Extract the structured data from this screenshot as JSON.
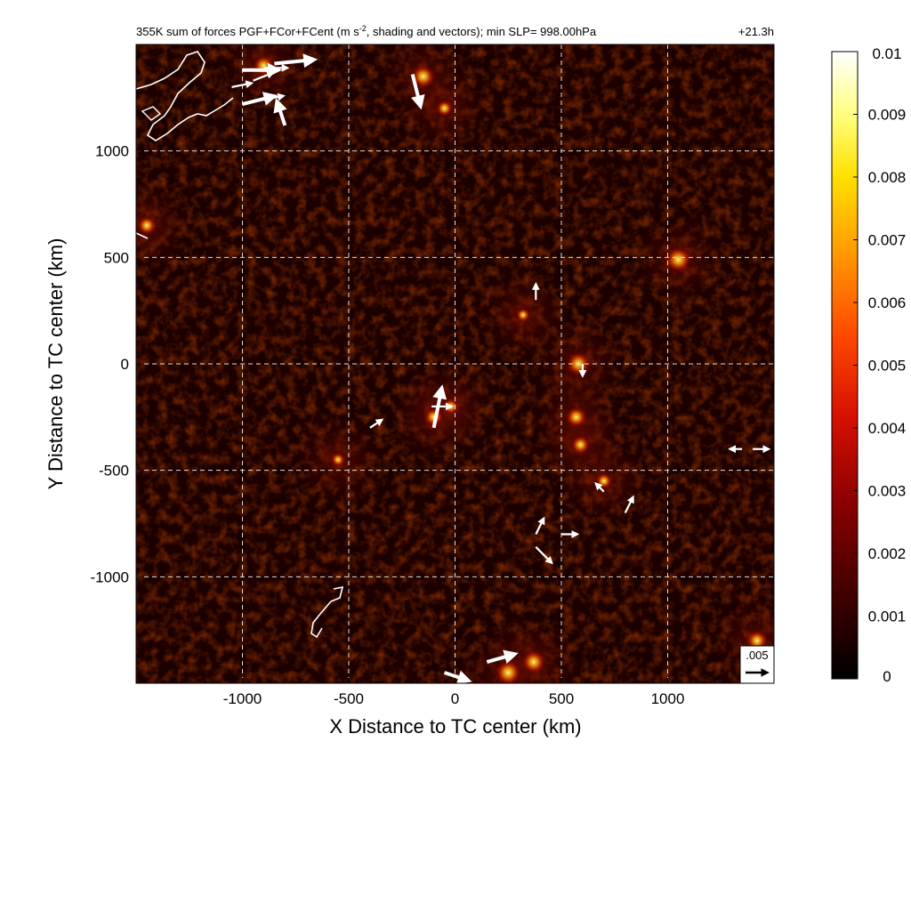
{
  "chart_data": {
    "type": "heatmap",
    "title": "355K sum of forces PGF+FCor+FCent (m s",
    "title_superscript": "-2",
    "title_rest": ", shading and vectors); min SLP= 998.00hPa",
    "time_label": "+21.3h",
    "xlabel": "X Distance to TC center (km)",
    "ylabel": "Y Distance to TC center (km)",
    "xlim": [
      -1500,
      1500
    ],
    "ylim": [
      -1500,
      1500
    ],
    "x_ticks": [
      -1000,
      -500,
      0,
      500,
      1000
    ],
    "y_ticks": [
      1000,
      500,
      0,
      -500,
      -1000
    ],
    "x_tick_labels": [
      "-1000",
      "-500",
      "0",
      "500",
      "1000"
    ],
    "y_tick_labels": [
      "1000",
      "500",
      "0",
      "-500",
      "-1000"
    ],
    "grid": true,
    "colorbar": {
      "min": 0,
      "max": 0.01,
      "tick_labels": [
        "0.01",
        "0.009",
        "0.008",
        "0.007",
        "0.006",
        "0.005",
        "0.004",
        "0.003",
        "0.002",
        "0.001",
        "0"
      ],
      "tick_values": [
        0.01,
        0.009,
        0.008,
        0.007,
        0.006,
        0.005,
        0.004,
        0.003,
        0.002,
        0.001,
        0
      ],
      "colormap": "hot"
    },
    "reference_vector": {
      "label": ".005",
      "value": 0.005
    },
    "hotspots": [
      {
        "x": -900,
        "y": 1400,
        "value": 0.006
      },
      {
        "x": -150,
        "y": 1350,
        "value": 0.007
      },
      {
        "x": -50,
        "y": 1200,
        "value": 0.004
      },
      {
        "x": -1450,
        "y": 650,
        "value": 0.005
      },
      {
        "x": 1050,
        "y": 490,
        "value": 0.008
      },
      {
        "x": 580,
        "y": 0,
        "value": 0.007
      },
      {
        "x": 570,
        "y": -250,
        "value": 0.006
      },
      {
        "x": 590,
        "y": -380,
        "value": 0.005
      },
      {
        "x": 700,
        "y": -550,
        "value": 0.004
      },
      {
        "x": -100,
        "y": -250,
        "value": 0.005
      },
      {
        "x": -20,
        "y": -200,
        "value": 0.004
      },
      {
        "x": 250,
        "y": -1450,
        "value": 0.008
      },
      {
        "x": 370,
        "y": -1400,
        "value": 0.007
      },
      {
        "x": 1420,
        "y": -1300,
        "value": 0.006
      },
      {
        "x": -550,
        "y": -450,
        "value": 0.003
      },
      {
        "x": 320,
        "y": 230,
        "value": 0.003
      }
    ],
    "vectors": [
      {
        "x": -1000,
        "y": 1380,
        "u": 0.009,
        "v": 0.0
      },
      {
        "x": -900,
        "y": 1390,
        "u": 0.006,
        "v": 0.0
      },
      {
        "x": -850,
        "y": 1410,
        "u": 0.01,
        "v": 0.001
      },
      {
        "x": -1050,
        "y": 1300,
        "u": 0.005,
        "v": 0.001
      },
      {
        "x": -950,
        "y": 1330,
        "u": 0.005,
        "v": 0.002
      },
      {
        "x": -1000,
        "y": 1220,
        "u": 0.008,
        "v": 0.002
      },
      {
        "x": -900,
        "y": 1240,
        "u": 0.005,
        "v": 0.001
      },
      {
        "x": -800,
        "y": 1120,
        "u": -0.002,
        "v": 0.006
      },
      {
        "x": -200,
        "y": 1360,
        "u": 0.002,
        "v": -0.008
      },
      {
        "x": -100,
        "y": -300,
        "u": 0.002,
        "v": 0.01
      },
      {
        "x": -110,
        "y": -200,
        "u": 0.005,
        "v": 0.0
      },
      {
        "x": -400,
        "y": -300,
        "u": 0.003,
        "v": 0.002
      },
      {
        "x": 380,
        "y": -800,
        "u": 0.002,
        "v": 0.004
      },
      {
        "x": 380,
        "y": -860,
        "u": 0.004,
        "v": -0.004
      },
      {
        "x": 500,
        "y": -800,
        "u": 0.004,
        "v": 0.0
      },
      {
        "x": 800,
        "y": -700,
        "u": 0.002,
        "v": 0.004
      },
      {
        "x": 150,
        "y": -1400,
        "u": 0.007,
        "v": 0.002
      },
      {
        "x": -50,
        "y": -1450,
        "u": 0.006,
        "v": -0.002
      },
      {
        "x": 380,
        "y": 300,
        "u": 0.0,
        "v": 0.004
      },
      {
        "x": 1400,
        "y": -400,
        "u": 0.004,
        "v": 0.0
      },
      {
        "x": 1350,
        "y": -400,
        "u": -0.003,
        "v": 0.0
      },
      {
        "x": 600,
        "y": 0,
        "u": 0.0,
        "v": -0.003
      },
      {
        "x": 700,
        "y": -600,
        "u": -0.002,
        "v": 0.002
      }
    ]
  }
}
